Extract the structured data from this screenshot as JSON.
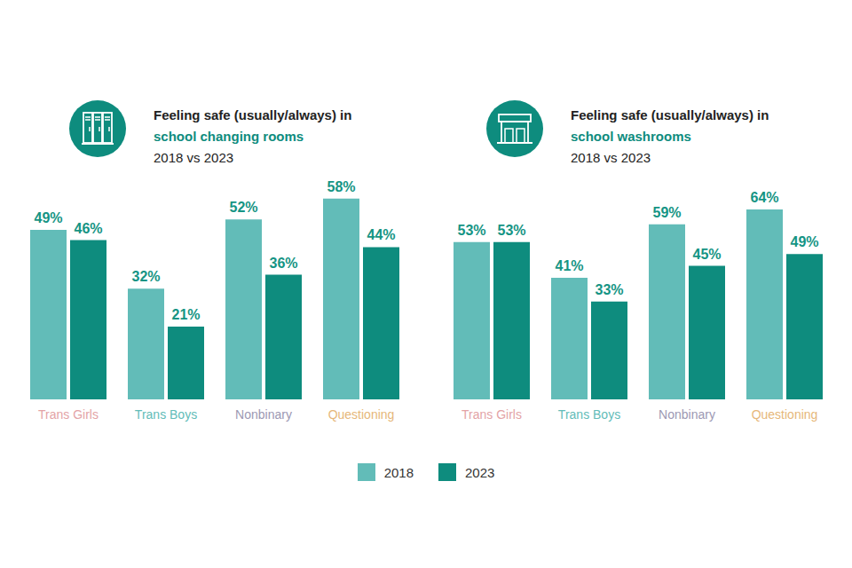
{
  "chart_data": [
    {
      "type": "bar",
      "title": "Feeling safe (usually/always) in",
      "subtitle": "school changing rooms",
      "annotations": [
        "2018 vs 2023"
      ],
      "categories": [
        "Trans Girls",
        "Trans Boys",
        "Nonbinary",
        "Questioning"
      ],
      "series": [
        {
          "name": "2018",
          "color": "#62bcb8",
          "values": [
            49,
            32,
            52,
            58
          ],
          "value_labels": [
            "49%",
            "32%",
            "52%",
            "58%"
          ]
        },
        {
          "name": "2023",
          "color": "#0e8c7e",
          "values": [
            46,
            21,
            36,
            44
          ],
          "value_labels": [
            "46%",
            "21%",
            "36%",
            "44%"
          ]
        }
      ],
      "ylim": [
        0,
        60
      ],
      "grid": false,
      "data_labels": true,
      "tick_labels": "x",
      "legend": "bottom"
    },
    {
      "type": "bar",
      "title": "Feeling safe (usually/always) in",
      "subtitle": "school washrooms",
      "annotations": [
        "2018 vs 2023"
      ],
      "categories": [
        "Trans Girls",
        "Trans Boys",
        "Nonbinary",
        "Questioning"
      ],
      "series": [
        {
          "name": "2018",
          "color": "#62bcb8",
          "values": [
            53,
            41,
            59,
            64
          ],
          "value_labels": [
            "53%",
            "41%",
            "59%",
            "64%"
          ]
        },
        {
          "name": "2023",
          "color": "#0e8c7e",
          "values": [
            53,
            33,
            45,
            49
          ],
          "value_labels": [
            "53%",
            "33%",
            "45%",
            "49%"
          ]
        }
      ],
      "ylim": [
        0,
        70
      ],
      "grid": false,
      "data_labels": true,
      "tick_labels": "x"
    }
  ]
}
